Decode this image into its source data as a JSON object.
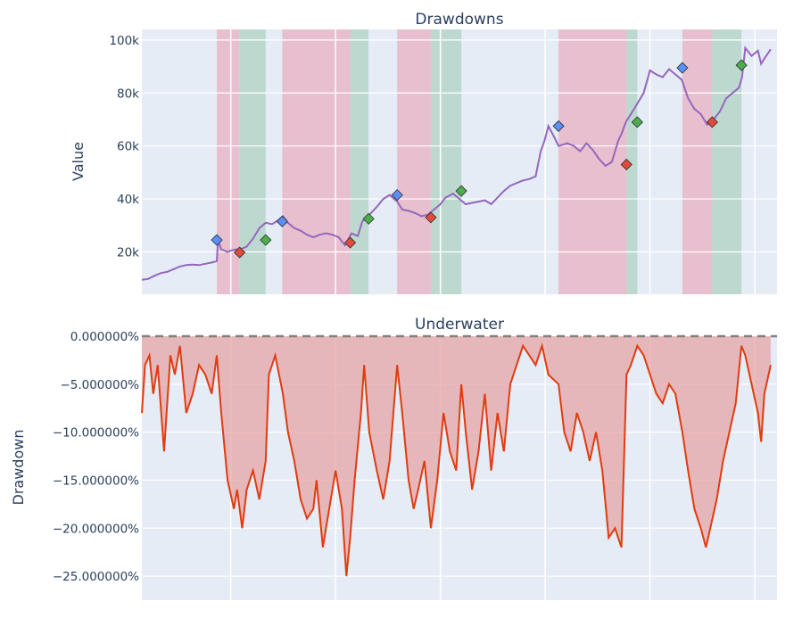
{
  "chart_data": [
    {
      "type": "line",
      "title": "Drawdowns",
      "xlabel": "",
      "ylabel": "Value",
      "x_range": [
        0,
        1
      ],
      "ylim": [
        4000,
        104000
      ],
      "yticks": [
        {
          "v": 20000,
          "label": "20k"
        },
        {
          "v": 40000,
          "label": "40k"
        },
        {
          "v": 60000,
          "label": "60k"
        },
        {
          "v": 80000,
          "label": "80k"
        },
        {
          "v": 100000,
          "label": "100k"
        }
      ],
      "x_gridlines": [
        0.14,
        0.305,
        0.47,
        0.635,
        0.8,
        0.965
      ],
      "line_color": "#9467bd",
      "series": [
        {
          "x": [
            0.0,
            0.01,
            0.02,
            0.03,
            0.04,
            0.05,
            0.06,
            0.07,
            0.08,
            0.09,
            0.1,
            0.11,
            0.118,
            0.12,
            0.125,
            0.135,
            0.14,
            0.15,
            0.155,
            0.165,
            0.175,
            0.185,
            0.195,
            0.205,
            0.215,
            0.222,
            0.23,
            0.24,
            0.25,
            0.26,
            0.27,
            0.28,
            0.29,
            0.3,
            0.31,
            0.32,
            0.33,
            0.34,
            0.347,
            0.352,
            0.36,
            0.37,
            0.38,
            0.39,
            0.402,
            0.41,
            0.42,
            0.432,
            0.44,
            0.45,
            0.46,
            0.47,
            0.478,
            0.49,
            0.5,
            0.51,
            0.52,
            0.53,
            0.54,
            0.55,
            0.56,
            0.57,
            0.58,
            0.59,
            0.6,
            0.61,
            0.62,
            0.628,
            0.634,
            0.64,
            0.65,
            0.656,
            0.67,
            0.68,
            0.69,
            0.7,
            0.71,
            0.72,
            0.73,
            0.74,
            0.75,
            0.755,
            0.762,
            0.77,
            0.78,
            0.79,
            0.8,
            0.81,
            0.82,
            0.83,
            0.84,
            0.85,
            0.86,
            0.87,
            0.88,
            0.89,
            0.9,
            0.91,
            0.92,
            0.93,
            0.94,
            0.945,
            0.95,
            0.96,
            0.97,
            0.975,
            0.98,
            0.99
          ],
          "y": [
            9500,
            9800,
            11000,
            12000,
            12500,
            13500,
            14500,
            15000,
            15200,
            15000,
            15500,
            16000,
            16500,
            24500,
            21000,
            20000,
            20500,
            21000,
            21000,
            22000,
            25000,
            29000,
            31000,
            30500,
            32000,
            33500,
            31000,
            29000,
            28000,
            26500,
            25500,
            26500,
            27000,
            26500,
            25500,
            22500,
            27000,
            26000,
            31500,
            32500,
            34500,
            37000,
            40000,
            41500,
            39000,
            36000,
            35500,
            34500,
            33500,
            34000,
            36000,
            38000,
            40500,
            42000,
            40000,
            38000,
            38500,
            39000,
            39500,
            38000,
            40500,
            43000,
            45000,
            46000,
            47000,
            47500,
            48500,
            58000,
            62000,
            67500,
            63000,
            60000,
            61000,
            60000,
            58000,
            61000,
            58500,
            55000,
            52500,
            54000,
            62000,
            64500,
            69000,
            72000,
            76000,
            80000,
            88500,
            87000,
            86000,
            89000,
            87000,
            85000,
            78000,
            74000,
            72000,
            68000,
            70000,
            73000,
            78000,
            80000,
            82000,
            86000,
            97000,
            94000,
            96000,
            91000,
            93000,
            96500
          ]
        }
      ],
      "shaded_regions": [
        {
          "start": 0.118,
          "end": 0.154,
          "color": "#e8b4c4",
          "kind": "decline"
        },
        {
          "start": 0.154,
          "end": 0.195,
          "color": "#b3d4c6",
          "kind": "recovery"
        },
        {
          "start": 0.221,
          "end": 0.328,
          "color": "#e8b4c4",
          "kind": "decline"
        },
        {
          "start": 0.328,
          "end": 0.357,
          "color": "#b3d4c6",
          "kind": "recovery"
        },
        {
          "start": 0.402,
          "end": 0.455,
          "color": "#e8b4c4",
          "kind": "decline"
        },
        {
          "start": 0.455,
          "end": 0.503,
          "color": "#b3d4c6",
          "kind": "recovery"
        },
        {
          "start": 0.656,
          "end": 0.763,
          "color": "#e8b4c4",
          "kind": "decline"
        },
        {
          "start": 0.763,
          "end": 0.78,
          "color": "#b3d4c6",
          "kind": "recovery"
        },
        {
          "start": 0.851,
          "end": 0.898,
          "color": "#e8b4c4",
          "kind": "decline"
        },
        {
          "start": 0.898,
          "end": 0.944,
          "color": "#b3d4c6",
          "kind": "recovery"
        }
      ],
      "markers": [
        {
          "x": 0.118,
          "y": 24500,
          "kind": "peak",
          "color": "#5b8ff9"
        },
        {
          "x": 0.154,
          "y": 19800,
          "kind": "valley",
          "color": "#e24a3b"
        },
        {
          "x": 0.195,
          "y": 24500,
          "kind": "recovery",
          "color": "#4cae4c"
        },
        {
          "x": 0.221,
          "y": 31500,
          "kind": "peak",
          "color": "#5b8ff9"
        },
        {
          "x": 0.328,
          "y": 23500,
          "kind": "valley",
          "color": "#e24a3b"
        },
        {
          "x": 0.357,
          "y": 32500,
          "kind": "recovery",
          "color": "#4cae4c"
        },
        {
          "x": 0.402,
          "y": 41500,
          "kind": "peak",
          "color": "#5b8ff9"
        },
        {
          "x": 0.455,
          "y": 33000,
          "kind": "valley",
          "color": "#e24a3b"
        },
        {
          "x": 0.503,
          "y": 43000,
          "kind": "recovery",
          "color": "#4cae4c"
        },
        {
          "x": 0.656,
          "y": 67500,
          "kind": "peak",
          "color": "#5b8ff9"
        },
        {
          "x": 0.763,
          "y": 53000,
          "kind": "valley",
          "color": "#e24a3b"
        },
        {
          "x": 0.78,
          "y": 69000,
          "kind": "recovery",
          "color": "#4cae4c"
        },
        {
          "x": 0.851,
          "y": 89500,
          "kind": "peak",
          "color": "#5b8ff9"
        },
        {
          "x": 0.898,
          "y": 69000,
          "kind": "valley",
          "color": "#e24a3b"
        },
        {
          "x": 0.944,
          "y": 90500,
          "kind": "recovery",
          "color": "#4cae4c"
        }
      ]
    },
    {
      "type": "area",
      "title": "Underwater",
      "xlabel": "",
      "ylabel": "Drawdown",
      "x_range": [
        0,
        1
      ],
      "ylim": [
        -27.5,
        0
      ],
      "yticks": [
        {
          "v": 0,
          "label": "0.000000%"
        },
        {
          "v": -5,
          "label": "−5.000000%"
        },
        {
          "v": -10,
          "label": "−10.000000%"
        },
        {
          "v": -15,
          "label": "−15.000000%"
        },
        {
          "v": -20,
          "label": "−20.000000%"
        },
        {
          "v": -25,
          "label": "−25.000000%"
        }
      ],
      "x_gridlines": [
        0.14,
        0.305,
        0.47,
        0.635,
        0.8,
        0.965
      ],
      "line_color": "#e03c10",
      "fill_color": "#e6a5a5",
      "zero_line_color": "#808080",
      "series": [
        {
          "x": [
            0.0,
            0.005,
            0.012,
            0.018,
            0.025,
            0.035,
            0.045,
            0.052,
            0.06,
            0.07,
            0.08,
            0.09,
            0.1,
            0.11,
            0.118,
            0.125,
            0.135,
            0.145,
            0.15,
            0.158,
            0.165,
            0.175,
            0.185,
            0.195,
            0.2,
            0.21,
            0.222,
            0.23,
            0.24,
            0.25,
            0.26,
            0.27,
            0.275,
            0.285,
            0.295,
            0.305,
            0.315,
            0.322,
            0.328,
            0.335,
            0.345,
            0.35,
            0.358,
            0.37,
            0.38,
            0.39,
            0.402,
            0.41,
            0.42,
            0.428,
            0.435,
            0.445,
            0.455,
            0.465,
            0.475,
            0.485,
            0.495,
            0.503,
            0.51,
            0.52,
            0.53,
            0.54,
            0.55,
            0.56,
            0.57,
            0.58,
            0.59,
            0.6,
            0.61,
            0.62,
            0.63,
            0.64,
            0.656,
            0.665,
            0.675,
            0.685,
            0.695,
            0.705,
            0.715,
            0.725,
            0.735,
            0.745,
            0.755,
            0.763,
            0.77,
            0.78,
            0.79,
            0.8,
            0.81,
            0.82,
            0.83,
            0.84,
            0.851,
            0.86,
            0.87,
            0.88,
            0.888,
            0.895,
            0.905,
            0.915,
            0.925,
            0.935,
            0.944,
            0.95,
            0.96,
            0.97,
            0.975,
            0.98,
            0.99
          ],
          "y": [
            -8,
            -3,
            -2,
            -6,
            -3,
            -12,
            -2,
            -4,
            -1,
            -8,
            -6,
            -3,
            -4,
            -6,
            -2,
            -8,
            -15,
            -18,
            -16,
            -20,
            -16,
            -14,
            -17,
            -13,
            -4,
            -2,
            -6,
            -10,
            -13,
            -17,
            -19,
            -18,
            -15,
            -22,
            -18,
            -14,
            -18,
            -25,
            -21,
            -15,
            -8,
            -3,
            -10,
            -14,
            -17,
            -13,
            -3,
            -8,
            -15,
            -18,
            -16,
            -13,
            -20,
            -15,
            -8,
            -12,
            -14,
            -5,
            -10,
            -16,
            -12,
            -6,
            -14,
            -8,
            -12,
            -5,
            -3,
            -1,
            -2,
            -3,
            -1,
            -4,
            -5,
            -10,
            -12,
            -8,
            -10,
            -13,
            -10,
            -14,
            -21,
            -20,
            -22,
            -4,
            -3,
            -1,
            -2,
            -4,
            -6,
            -7,
            -5,
            -6,
            -10,
            -14,
            -18,
            -20,
            -22,
            -20,
            -17,
            -13,
            -10,
            -7,
            -1,
            -2,
            -5,
            -8,
            -11,
            -6,
            -3
          ]
        }
      ]
    }
  ]
}
